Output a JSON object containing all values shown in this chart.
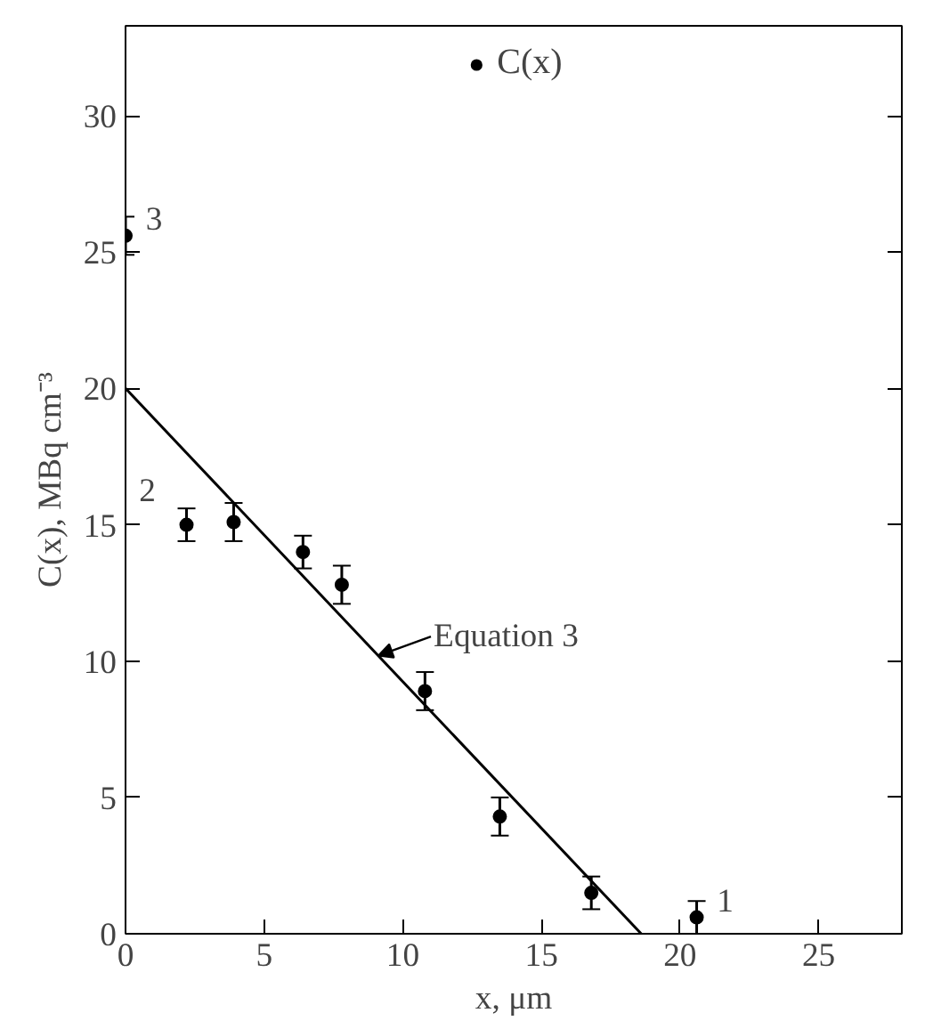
{
  "chart_data": {
    "type": "scatter",
    "xlabel": "x, μm",
    "ylabel": "C(x), MBq cm⁻³",
    "xlim": [
      0,
      28
    ],
    "ylim": [
      0,
      33.3
    ],
    "xticks": [
      0,
      5,
      10,
      15,
      20,
      25
    ],
    "yticks": [
      0,
      5,
      10,
      15,
      20,
      25,
      30
    ],
    "grid": false,
    "legend": "top",
    "marker": "circle",
    "series": [
      {
        "name": "C(x)",
        "color": "#000000",
        "x": [
          0,
          2.2,
          3.9,
          6.4,
          7.8,
          10.8,
          13.5,
          16.8,
          20.6
        ],
        "values": [
          25.6,
          15.0,
          15.1,
          14.0,
          12.8,
          8.9,
          4.3,
          1.5,
          0.6
        ],
        "errors": [
          0.7,
          0.6,
          0.7,
          0.6,
          0.7,
          0.7,
          0.7,
          0.6,
          0.6
        ]
      },
      {
        "name": "Equation 3",
        "type": "line",
        "marker": "none",
        "color": "#000000",
        "x": [
          0,
          18.6
        ],
        "values": [
          20,
          0
        ]
      }
    ],
    "annotations": [
      {
        "text": "3",
        "x": 0,
        "y": 25.6
      },
      {
        "text": "2",
        "x": 2.2,
        "y": 15.0
      },
      {
        "text": "1",
        "x": 20.6,
        "y": 0.6
      }
    ]
  }
}
